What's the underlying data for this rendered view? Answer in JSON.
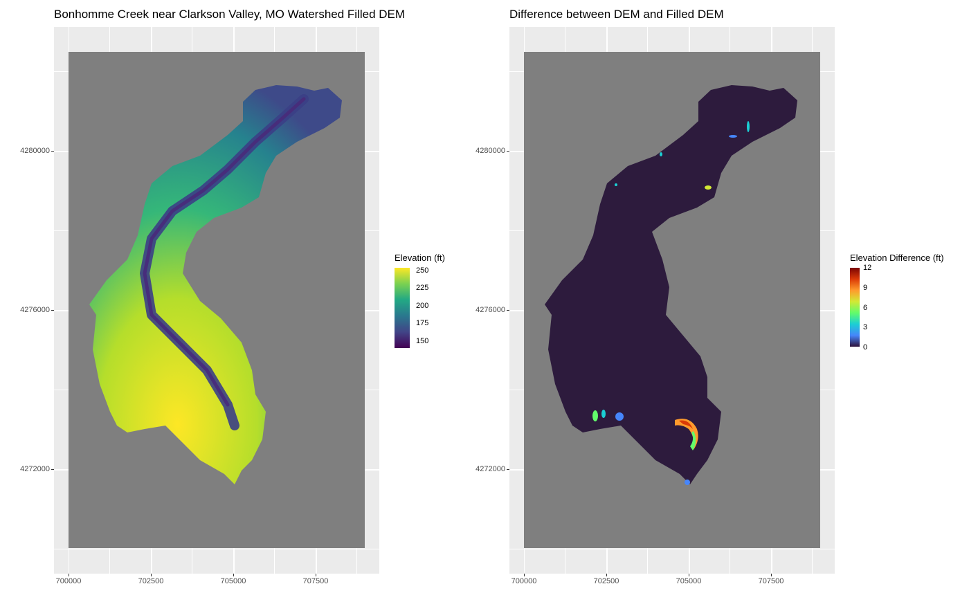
{
  "maps": [
    {
      "title": "Bonhomme Creek near Clarkson Valley, MO Watershed Filled DEM",
      "x_ticks": [
        "700000",
        "702500",
        "705000",
        "707500"
      ],
      "y_ticks": [
        "4280000",
        "4276000",
        "4272000"
      ],
      "legend": {
        "title": "Elevation (ft)",
        "labels": [
          "250",
          "225",
          "200",
          "175",
          "150"
        ],
        "colors": [
          "#fde725",
          "#7ad151",
          "#22a884",
          "#2a788e",
          "#414487",
          "#440154"
        ]
      }
    },
    {
      "title": "Difference between DEM and Filled DEM",
      "x_ticks": [
        "700000",
        "702500",
        "705000",
        "707500"
      ],
      "y_ticks": [
        "4280000",
        "4276000",
        "4272000"
      ],
      "legend": {
        "title": "Elevation Difference (ft)",
        "labels": [
          "12",
          "9",
          "6",
          "3",
          "0"
        ],
        "colors": [
          "#7a0403",
          "#db3a07",
          "#fe9b2d",
          "#d2e935",
          "#62fc6b",
          "#1bcfd4",
          "#4686fb",
          "#30123b"
        ]
      }
    }
  ],
  "colors": {
    "background": "#7f7f7f",
    "panel": "#ebebeb",
    "no_difference": "#2d1b3d"
  }
}
